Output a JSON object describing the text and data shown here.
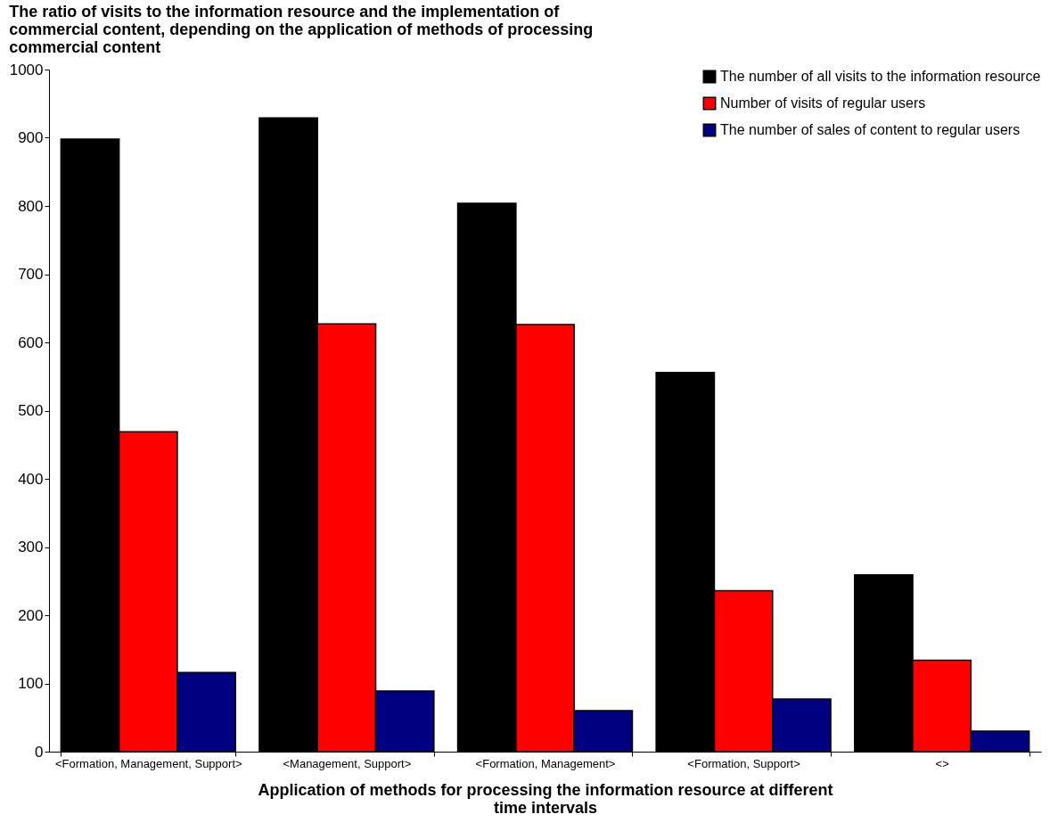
{
  "chart_data": {
    "type": "bar",
    "title": "The ratio of visits to the information resource and the implementation of commercial content, depending on the application of methods of processing commercial content",
    "xlabel": "Application of methods for processing the information resource at different time intervals",
    "categories": [
      "<Formation, Management, Support>",
      "<Management, Support>",
      "<Formation, Management>",
      "<Formation, Support>",
      "<>"
    ],
    "series": [
      {
        "name": "The number of all visits to the information resource",
        "color": "#000000",
        "values": [
          898,
          929,
          804,
          556,
          259
        ]
      },
      {
        "name": "Number of visits of regular users",
        "color": "#ff0000",
        "values": [
          469,
          627,
          626,
          236,
          134
        ]
      },
      {
        "name": "The number of sales of content to regular users",
        "color": "#000080",
        "values": [
          116,
          89,
          60,
          77,
          30
        ]
      }
    ],
    "ylim": [
      0,
      1000
    ],
    "yticks": [
      0,
      100,
      200,
      300,
      400,
      500,
      600,
      700,
      800,
      900,
      1000
    ],
    "grid": false,
    "legend": "top right"
  }
}
